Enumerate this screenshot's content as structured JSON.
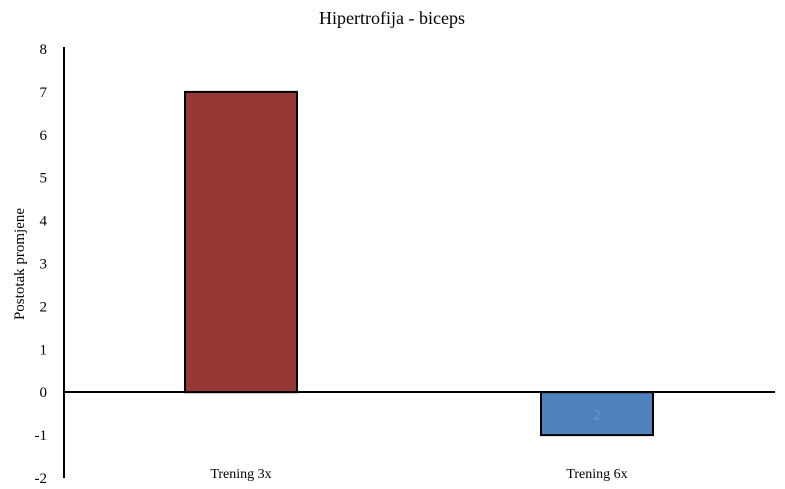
{
  "chart_data": {
    "type": "bar",
    "title": "Hipertrofija - biceps",
    "ylabel": "Postotak promjene",
    "xlabel": "",
    "ylim": [
      -2,
      8
    ],
    "yticks": [
      -2,
      -1,
      0,
      1,
      2,
      3,
      4,
      5,
      6,
      7,
      8
    ],
    "categories": [
      "Trening 3x",
      "Trening 6x"
    ],
    "values": [
      7,
      -1
    ],
    "colors": [
      "#953735",
      "#4f81bd"
    ],
    "data_labels": [
      "",
      "2"
    ],
    "grid": false,
    "legend": "none"
  }
}
